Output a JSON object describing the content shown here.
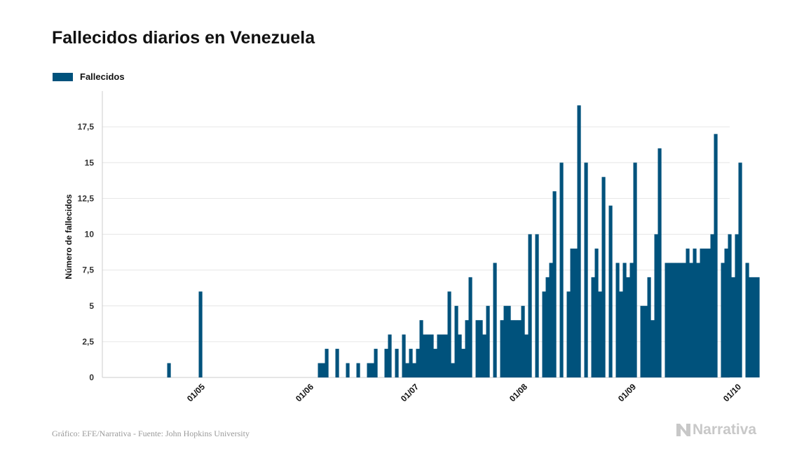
{
  "colors": {
    "bar": "#00527c",
    "grid": "#e6e6e6",
    "axis": "#cccccc"
  },
  "footer": {
    "source": "Gráfico: EFE/Narrativa - Fuente: John Hopkins University",
    "brand": "Narrativa",
    "brand_icon": "narrativa-n-logo-icon"
  },
  "chart_data": {
    "type": "bar",
    "title": "Fallecidos diarios en Venezuela",
    "xlabel": "",
    "ylabel": "Número de fallecidos",
    "ylim": [
      0,
      20
    ],
    "grid": true,
    "legend_position": "top-left",
    "yticks": [
      0,
      2.5,
      5,
      7.5,
      10,
      12.5,
      15,
      17.5
    ],
    "ytick_labels": [
      "0",
      "2,5",
      "5",
      "7,5",
      "10",
      "12,5",
      "15",
      "17,5"
    ],
    "xticks": [
      "2020-05-01",
      "2020-06-01",
      "2020-07-01",
      "2020-08-01",
      "2020-09-01",
      "2020-10-01"
    ],
    "xtick_labels": [
      "01/05",
      "01/06",
      "01/07",
      "01/08",
      "01/09",
      "01/10"
    ],
    "x_start": "2020-04-14",
    "x_end": "2020-10-08",
    "series": [
      {
        "name": "Fallecidos",
        "values": [
          0,
          0,
          0,
          0,
          0,
          0,
          0,
          0,
          0,
          1,
          0,
          0,
          0,
          0,
          0,
          0,
          0,
          0,
          6,
          0,
          0,
          0,
          0,
          0,
          0,
          0,
          0,
          0,
          0,
          0,
          0,
          0,
          0,
          0,
          0,
          0,
          0,
          0,
          0,
          0,
          0,
          0,
          0,
          0,
          0,
          0,
          0,
          0,
          0,
          0,
          0,
          0,
          1,
          1,
          2,
          0,
          0,
          2,
          0,
          0,
          1,
          0,
          0,
          1,
          0,
          0,
          1,
          1,
          2,
          0,
          0,
          2,
          3,
          0,
          2,
          0,
          3,
          1,
          2,
          1,
          2,
          4,
          3,
          3,
          3,
          2,
          3,
          3,
          3,
          6,
          1,
          5,
          3,
          2,
          4,
          7,
          0,
          4,
          4,
          3,
          5,
          0,
          8,
          0,
          4,
          5,
          5,
          4,
          4,
          4,
          5,
          3,
          10,
          0,
          10,
          0,
          6,
          7,
          8,
          13,
          0,
          15,
          0,
          6,
          9,
          9,
          19,
          0,
          15,
          0,
          7,
          9,
          6,
          14,
          0,
          12,
          0,
          8,
          6,
          8,
          7,
          8,
          15,
          0,
          5,
          5,
          7,
          4,
          10,
          16,
          0,
          8,
          8,
          8,
          8,
          8,
          8,
          9,
          8,
          9,
          8,
          9,
          9,
          9,
          10,
          17,
          0,
          8,
          9,
          10,
          7,
          10,
          15,
          0,
          8,
          7,
          7,
          7,
          8,
          6
        ]
      }
    ]
  }
}
